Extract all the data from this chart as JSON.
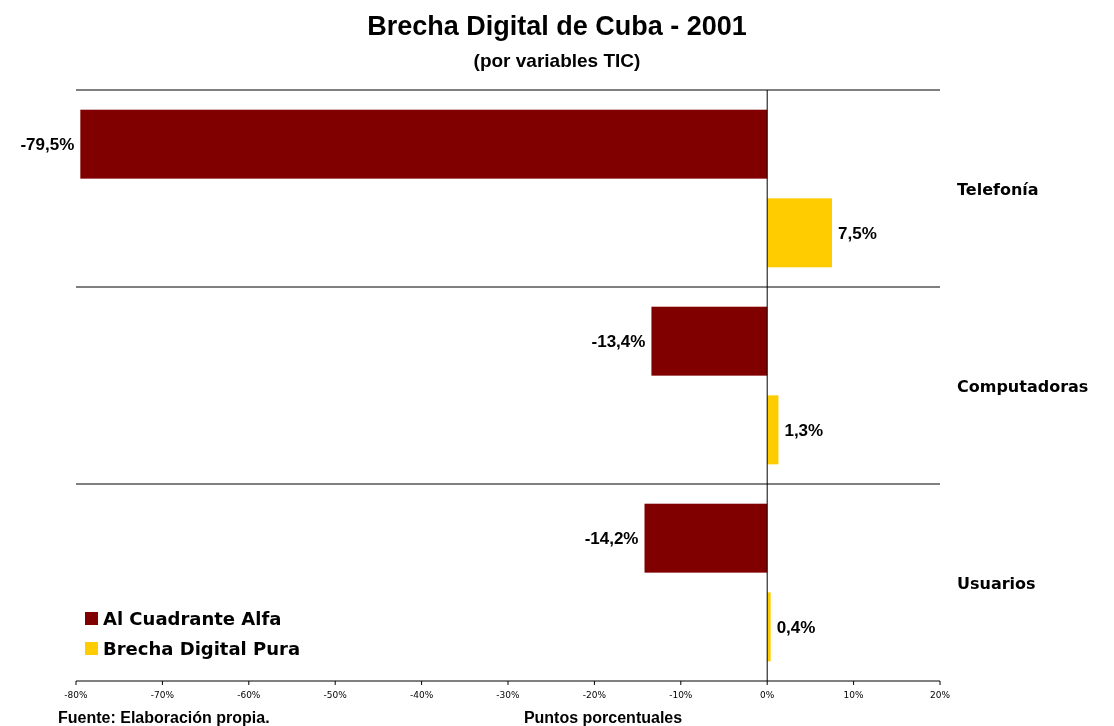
{
  "chart_data": {
    "type": "bar",
    "orientation": "horizontal",
    "title": "Brecha Digital de Cuba - 2001",
    "subtitle": "(por variables TIC)",
    "xlabel": "Puntos porcentuales",
    "annotations": [
      "Fuente: Elaboración propia."
    ],
    "categories": [
      "Telefonía",
      "Computadoras",
      "Usuarios"
    ],
    "series": [
      {
        "name": "Al Cuadrante Alfa",
        "color": "#800000",
        "values": [
          -79.5,
          -13.4,
          -14.2
        ],
        "value_labels": [
          "-79,5%",
          "-13,4%",
          "-14,2%"
        ]
      },
      {
        "name": "Brecha Digital Pura",
        "color": "#ffcc00",
        "values": [
          7.5,
          1.3,
          0.4
        ],
        "value_labels": [
          "7,5%",
          "1,3%",
          "0,4%"
        ]
      }
    ],
    "xlim": [
      -80,
      20
    ],
    "xticks": [
      {
        "value": -80,
        "label": "-80%"
      },
      {
        "value": -70,
        "label": "-70%"
      },
      {
        "value": -60,
        "label": "-60%"
      },
      {
        "value": -50,
        "label": "-50%"
      },
      {
        "value": -40,
        "label": "-40%"
      },
      {
        "value": -30,
        "label": "-30%"
      },
      {
        "value": -20,
        "label": "-20%"
      },
      {
        "value": -10,
        "label": "-10%"
      },
      {
        "value": 0,
        "label": "0%"
      },
      {
        "value": 10,
        "label": "10%"
      },
      {
        "value": 20,
        "label": "20%"
      }
    ],
    "ref_lines": [
      {
        "axis": "x",
        "value": 0,
        "color": "#000000"
      }
    ],
    "grid": "y",
    "legend": "bottom left"
  }
}
